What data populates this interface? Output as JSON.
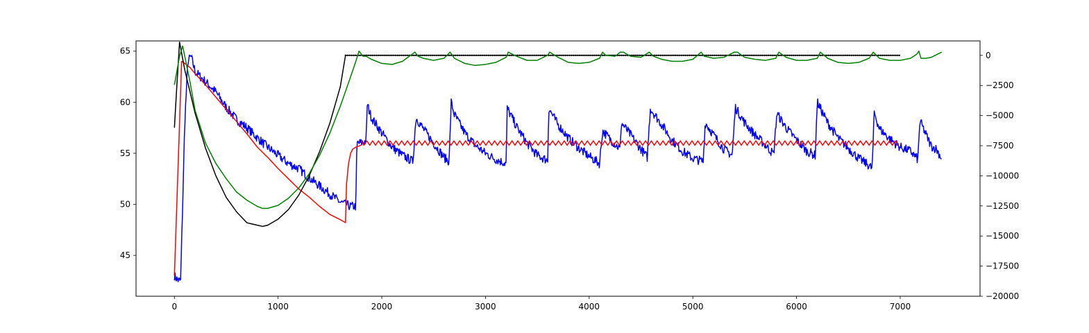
{
  "chart_data": {
    "type": "line",
    "title": "",
    "xlabel": "",
    "ylabel": "",
    "y2label": "",
    "xlim": [
      -370,
      7770
    ],
    "ylim": [
      41,
      66
    ],
    "y2lim": [
      -20000,
      1200
    ],
    "grid": false,
    "x_ticks": [
      0,
      1000,
      2000,
      3000,
      4000,
      5000,
      6000,
      7000
    ],
    "y_ticks": [
      45,
      50,
      55,
      60,
      65
    ],
    "y2_ticks": [
      0,
      -2500,
      -5000,
      -7500,
      -10000,
      -12500,
      -15000,
      -17500,
      -20000
    ],
    "x_tick_labels": [
      "0",
      "1000",
      "2000",
      "3000",
      "4000",
      "5000",
      "6000",
      "7000"
    ],
    "y_tick_labels": [
      "45",
      "50",
      "55",
      "60",
      "65"
    ],
    "y2_tick_labels": [
      "0",
      "−2500",
      "−5000",
      "−7500",
      "−10000",
      "−12500",
      "−15000",
      "−17500",
      "−20000"
    ],
    "series": [
      {
        "color": "#0000ff",
        "axis": "left",
        "style": "noisy",
        "x": [
          0,
          30,
          60,
          80,
          100,
          130,
          160,
          200,
          300,
          400,
          500,
          600,
          700,
          800,
          900,
          1000,
          1100,
          1200,
          1300,
          1400,
          1500,
          1600,
          1650,
          1700,
          1750,
          1760,
          1800,
          1850,
          1860,
          1900,
          2000,
          2100,
          2200,
          2300,
          2330,
          2400,
          2500,
          2600,
          2650,
          2670,
          2700,
          2800,
          2900,
          3000,
          3100,
          3200,
          3210,
          3300,
          3400,
          3500,
          3600,
          3610,
          3700,
          3800,
          3900,
          4000,
          4100,
          4130,
          4200,
          4300,
          4310,
          4400,
          4500,
          4560,
          4590,
          4700,
          4800,
          4900,
          5000,
          5100,
          5120,
          5200,
          5300,
          5380,
          5410,
          5500,
          5600,
          5700,
          5780,
          5810,
          5900,
          6000,
          6100,
          6180,
          6200,
          6300,
          6400,
          6500,
          6600,
          6700,
          6730,
          6750,
          6800,
          6900,
          7000,
          7100,
          7170,
          7190,
          7250,
          7300,
          7350,
          7400
        ],
        "y": [
          43,
          42.6,
          42.5,
          50,
          58,
          64,
          64.5,
          63,
          62,
          61,
          59.5,
          58.3,
          57.5,
          56.5,
          55.6,
          54.8,
          54,
          53.5,
          52.6,
          51.8,
          51,
          50.2,
          50,
          49.8,
          49.8,
          56,
          56,
          56.2,
          59.8,
          58.5,
          57,
          55.6,
          54.8,
          54.2,
          58.5,
          57.4,
          56,
          54.6,
          54.2,
          60,
          58.8,
          57,
          55.8,
          55,
          54.4,
          54,
          59.4,
          57.6,
          56,
          54.8,
          54.3,
          59.4,
          57.8,
          56.5,
          55.5,
          54.7,
          54,
          57.2,
          56.4,
          55.4,
          58,
          56.8,
          55.4,
          54.6,
          59.4,
          57.8,
          56.3,
          55.2,
          54.5,
          54.2,
          58,
          56.8,
          55.4,
          54.8,
          59.5,
          58,
          56.8,
          55.8,
          54.9,
          58.9,
          57.5,
          56.3,
          55.2,
          54.8,
          60,
          58,
          56.5,
          55.5,
          54.5,
          53.8,
          53.5,
          59,
          57.4,
          56.4,
          55.6,
          55.2,
          54.4,
          58.2,
          56.8,
          55.7,
          55.4,
          54.5
        ]
      },
      {
        "color": "#ff0000",
        "axis": "left",
        "style": "line",
        "x": [
          0,
          70,
          100,
          150,
          200,
          300,
          400,
          500,
          600,
          700,
          800,
          900,
          1000,
          1100,
          1200,
          1300,
          1400,
          1500,
          1600,
          1650,
          1660,
          1680,
          1700,
          1720,
          1750,
          1780,
          1800
        ],
        "y": [
          43,
          64,
          63.8,
          63.4,
          62.8,
          61.7,
          60.5,
          59.3,
          58.1,
          56.9,
          55.6,
          54.6,
          53.5,
          52.5,
          51.5,
          50.7,
          49.8,
          49,
          48.5,
          48.2,
          52,
          54,
          55,
          55.4,
          55.6,
          55.7,
          55.8
        ]
      },
      {
        "color": "#ff0000",
        "axis": "left",
        "style": "zigzag",
        "x": [
          1800,
          7000
        ],
        "y": [
          56,
          56
        ]
      },
      {
        "color": "#000000",
        "axis": "right",
        "style": "line",
        "x": [
          0,
          20,
          50,
          100,
          200,
          300,
          400,
          500,
          600,
          700,
          800,
          850,
          900,
          1000,
          1100,
          1200,
          1300,
          1400,
          1500,
          1600,
          1650,
          7000
        ],
        "y": [
          -6000,
          -3000,
          1100,
          -1200,
          -4800,
          -7700,
          -10000,
          -11800,
          -13000,
          -13900,
          -14100,
          -14200,
          -14100,
          -13600,
          -12800,
          -11600,
          -10000,
          -8000,
          -5600,
          -2600,
          0,
          0
        ]
      },
      {
        "color": "#008000",
        "axis": "left",
        "style": "line",
        "x": [
          0,
          50,
          80,
          100,
          150,
          200,
          300,
          400,
          500,
          600,
          700,
          800,
          850,
          900,
          1000,
          1100,
          1200,
          1300,
          1400,
          1500,
          1600,
          1700,
          1750,
          1780,
          1820,
          1850,
          1900,
          2000,
          2100,
          2200,
          2320,
          2350,
          2400,
          2500,
          2600,
          2660,
          2700,
          2800,
          2900,
          3000,
          3100,
          3200,
          3220,
          3300,
          3400,
          3500,
          3600,
          3620,
          3700,
          3800,
          3900,
          4000,
          4100,
          4130,
          4160,
          4250,
          4300,
          4330,
          4400,
          4500,
          4580,
          4620,
          4700,
          4800,
          4900,
          5000,
          5080,
          5110,
          5200,
          5300,
          5400,
          5430,
          5500,
          5600,
          5700,
          5800,
          5830,
          5900,
          6000,
          6100,
          6200,
          6230,
          6300,
          6400,
          6500,
          6600,
          6700,
          6740,
          6800,
          6900,
          7000,
          7100,
          7160,
          7180,
          7200,
          7250,
          7300,
          7400
        ],
        "y": [
          61.7,
          64.5,
          65.5,
          64.5,
          62,
          59.2,
          56,
          54,
          52.5,
          51.2,
          50.4,
          49.8,
          49.6,
          49.6,
          49.9,
          50.6,
          51.6,
          53,
          54.8,
          57,
          59.6,
          62.5,
          64,
          65,
          64.5,
          64.5,
          64.2,
          63.8,
          63.7,
          64,
          64.9,
          64.5,
          64.3,
          64.1,
          64.3,
          64.9,
          64.3,
          63.8,
          63.6,
          63.7,
          63.9,
          64.4,
          64.9,
          64.5,
          64.1,
          64.1,
          64.6,
          64.9,
          64.4,
          63.9,
          63.8,
          63.9,
          64.3,
          64.9,
          64.6,
          64.5,
          64.9,
          64.9,
          64.5,
          64.4,
          64.9,
          64.5,
          64.2,
          64,
          64,
          64.2,
          64.9,
          64.5,
          64.3,
          64.4,
          64.9,
          64.9,
          64.4,
          64.2,
          64.1,
          64.3,
          64.9,
          64.4,
          64.1,
          64.1,
          64.3,
          64.9,
          64.3,
          63.9,
          63.8,
          63.9,
          64.3,
          64.9,
          64.3,
          64.1,
          64.1,
          64.3,
          64.7,
          65,
          64.3,
          64.3,
          64.4,
          64.9
        ]
      }
    ]
  }
}
